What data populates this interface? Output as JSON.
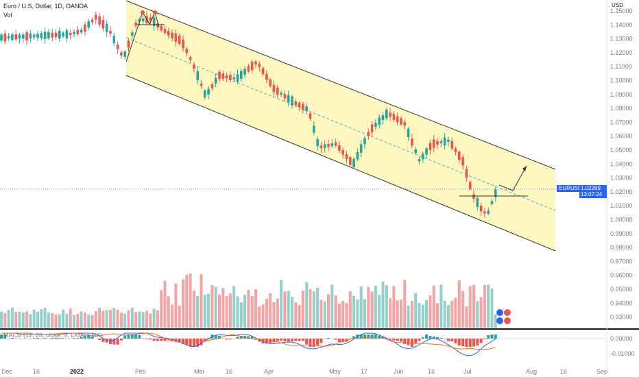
{
  "header": {
    "title": "Euro / U.S. Dollar, 1D, OANDA",
    "vol_label": "Vol",
    "macd_label": "MACD (12, 26, close, 9, EMA, EMA)",
    "currency": "USD"
  },
  "price_tag": {
    "symbol": "EURUSD",
    "price": "1.02269",
    "countdown": "13:07:24"
  },
  "colors": {
    "up": "#26a69a",
    "down": "#ef5350",
    "vol_up": "#92d1c9",
    "vol_down": "#f5a3a3",
    "channel_fill": "#fff7c0",
    "macd_line": "#2962ff",
    "signal_line": "#ff6d00",
    "accent": "#2962ff"
  },
  "chart_data": {
    "type": "candlestick",
    "y_ticks": [
      "1.15000",
      "1.14000",
      "1.13000",
      "1.12000",
      "1.11000",
      "1.10000",
      "1.09000",
      "1.08000",
      "1.07000",
      "1.06000",
      "1.05000",
      "1.04000",
      "1.03000",
      "1.02000",
      "1.01000",
      "1.00000",
      "0.99000",
      "0.98000",
      "0.97000",
      "0.96000",
      "0.95000",
      "0.94000",
      "0.93000"
    ],
    "macd_ticks": [
      "0.00000",
      "-0.01000"
    ],
    "x_ticks": [
      "Dec",
      "16",
      "2022",
      "Feb",
      "Mar",
      "16",
      "Apr",
      "May",
      "17",
      "Jun",
      "16",
      "Jul",
      "Aug",
      "16",
      "Sep"
    ],
    "ylim": [
      0.925,
      1.155
    ],
    "current_price": 1.02269
  }
}
